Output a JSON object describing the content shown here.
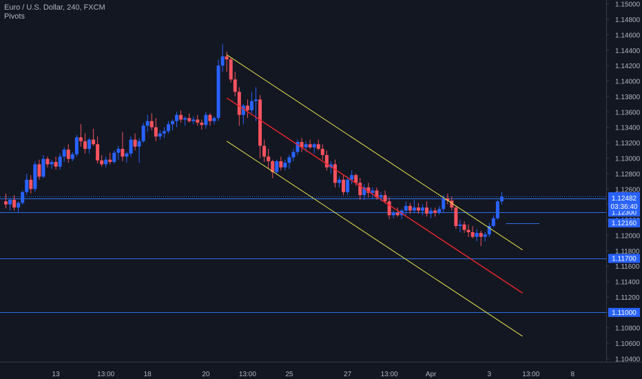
{
  "header": {
    "symbol": "Euro / U.S. Dollar, 240, FXCM",
    "indicator": "Pivots"
  },
  "colors": {
    "background": "#131722",
    "up": "#2962ff",
    "down": "#f7525f",
    "hline": "#2f6fe8",
    "channel": "#e8e84a",
    "regression": "#e5262b",
    "axis_text": "#b2b5be",
    "label_bg": "#2962ff",
    "label_text": "#ffffff",
    "axis_line": "#363a45"
  },
  "chart_data": {
    "type": "candlestick",
    "ylim": [
      1.1036,
      1.1505
    ],
    "y_ticks": [
      "1.15000",
      "1.14800",
      "1.14600",
      "1.14400",
      "1.14200",
      "1.14000",
      "1.13800",
      "1.13600",
      "1.13400",
      "1.13200",
      "1.13000",
      "1.12800",
      "1.12600",
      "1.12400",
      "1.12200",
      "1.12000",
      "1.11800",
      "1.11600",
      "1.11400",
      "1.11200",
      "1.11000",
      "1.10800",
      "1.10600",
      "1.10400"
    ],
    "x_ticks": [
      {
        "label": "13",
        "i": 12
      },
      {
        "label": "13:00",
        "i": 24
      },
      {
        "label": "18",
        "i": 34
      },
      {
        "label": "20",
        "i": 48
      },
      {
        "label": "13:00",
        "i": 58
      },
      {
        "label": "25",
        "i": 68
      },
      {
        "label": "27",
        "i": 82
      },
      {
        "label": "13:00",
        "i": 92
      },
      {
        "label": "Apr",
        "i": 102
      },
      {
        "label": "3",
        "i": 116
      },
      {
        "label": "13:00",
        "i": 126
      },
      {
        "label": "8",
        "i": 136
      }
    ],
    "horizontal_levels": [
      {
        "price": 1.125,
        "label": "1.12500",
        "style": "dotted"
      },
      {
        "price": 1.1248,
        "label": "1.12482",
        "style": "solid"
      },
      {
        "price": 1.123,
        "label": "1.12300",
        "style": "solid"
      },
      {
        "price": 1.1216,
        "label": "1.12160",
        "style": "short"
      },
      {
        "price": 1.117,
        "label": "1.11700",
        "style": "solid"
      },
      {
        "price": 1.11,
        "label": "1.11000",
        "style": "solid"
      }
    ],
    "current_price": {
      "label": "1.12482",
      "countdown": "03:36:40"
    },
    "channel": {
      "upper": [
        {
          "i": 53,
          "p": 1.1434
        },
        {
          "i": 124,
          "p": 1.1181
        }
      ],
      "lower": [
        {
          "i": 53,
          "p": 1.1322
        },
        {
          "i": 124,
          "p": 1.1069
        }
      ],
      "mid": [
        {
          "i": 53,
          "p": 1.1378
        },
        {
          "i": 124,
          "p": 1.1125
        }
      ]
    },
    "candles": [
      [
        1.1244,
        1.1254,
        1.1235,
        1.124
      ],
      [
        1.124,
        1.1248,
        1.1232,
        1.1246
      ],
      [
        1.1246,
        1.1252,
        1.1232,
        1.1236
      ],
      [
        1.1236,
        1.1244,
        1.1229,
        1.1242
      ],
      [
        1.1242,
        1.1258,
        1.124,
        1.1256
      ],
      [
        1.1256,
        1.128,
        1.1252,
        1.1272
      ],
      [
        1.1272,
        1.1278,
        1.1254,
        1.126
      ],
      [
        1.126,
        1.1296,
        1.1256,
        1.1292
      ],
      [
        1.1292,
        1.1298,
        1.1272,
        1.1276
      ],
      [
        1.1276,
        1.1304,
        1.1274,
        1.1299
      ],
      [
        1.1299,
        1.1302,
        1.1288,
        1.1292
      ],
      [
        1.1292,
        1.1298,
        1.1286,
        1.1295
      ],
      [
        1.1295,
        1.1302,
        1.1285,
        1.1289
      ],
      [
        1.1289,
        1.1306,
        1.1285,
        1.1302
      ],
      [
        1.1302,
        1.1314,
        1.1295,
        1.1311
      ],
      [
        1.1311,
        1.1318,
        1.1294,
        1.1299
      ],
      [
        1.1299,
        1.1308,
        1.1296,
        1.1305
      ],
      [
        1.1305,
        1.133,
        1.1302,
        1.1327
      ],
      [
        1.1327,
        1.1344,
        1.1315,
        1.1322
      ],
      [
        1.1322,
        1.1332,
        1.1306,
        1.1312
      ],
      [
        1.1312,
        1.1326,
        1.1306,
        1.1324
      ],
      [
        1.1324,
        1.1338,
        1.1316,
        1.1318
      ],
      [
        1.1318,
        1.1328,
        1.1293,
        1.1297
      ],
      [
        1.1297,
        1.1304,
        1.1289,
        1.1292
      ],
      [
        1.1292,
        1.1302,
        1.1288,
        1.1298
      ],
      [
        1.1298,
        1.1307,
        1.1292,
        1.1295
      ],
      [
        1.1295,
        1.131,
        1.1293,
        1.1307
      ],
      [
        1.1307,
        1.1316,
        1.1298,
        1.1312
      ],
      [
        1.1312,
        1.1334,
        1.1296,
        1.1302
      ],
      [
        1.1302,
        1.1308,
        1.1294,
        1.1306
      ],
      [
        1.1306,
        1.1328,
        1.1302,
        1.1324
      ],
      [
        1.1324,
        1.1332,
        1.131,
        1.1315
      ],
      [
        1.1315,
        1.1326,
        1.1294,
        1.1322
      ],
      [
        1.1322,
        1.1346,
        1.132,
        1.1342
      ],
      [
        1.1342,
        1.1356,
        1.1334,
        1.1348
      ],
      [
        1.1348,
        1.1358,
        1.1336,
        1.134
      ],
      [
        1.134,
        1.1352,
        1.1322,
        1.1328
      ],
      [
        1.1328,
        1.1336,
        1.1324,
        1.1332
      ],
      [
        1.1332,
        1.134,
        1.1326,
        1.1335
      ],
      [
        1.1335,
        1.1348,
        1.1332,
        1.1344
      ],
      [
        1.1344,
        1.135,
        1.1336,
        1.1348
      ],
      [
        1.1348,
        1.136,
        1.134,
        1.1356
      ],
      [
        1.1356,
        1.1362,
        1.1346,
        1.135
      ],
      [
        1.135,
        1.1354,
        1.1342,
        1.1352
      ],
      [
        1.1352,
        1.1358,
        1.1346,
        1.1348
      ],
      [
        1.1348,
        1.1354,
        1.1344,
        1.135
      ],
      [
        1.135,
        1.1356,
        1.1342,
        1.1346
      ],
      [
        1.1346,
        1.135,
        1.1337,
        1.1343
      ],
      [
        1.1343,
        1.136,
        1.1338,
        1.1356
      ],
      [
        1.1356,
        1.1358,
        1.1342,
        1.1348
      ],
      [
        1.1348,
        1.1354,
        1.1344,
        1.1352
      ],
      [
        1.1352,
        1.1428,
        1.1348,
        1.142
      ],
      [
        1.142,
        1.1448,
        1.1412,
        1.1432
      ],
      [
        1.1432,
        1.1438,
        1.1412,
        1.1428
      ],
      [
        1.1428,
        1.143,
        1.1398,
        1.1402
      ],
      [
        1.1402,
        1.1412,
        1.138,
        1.1386
      ],
      [
        1.1386,
        1.1392,
        1.1342,
        1.1356
      ],
      [
        1.1356,
        1.137,
        1.1344,
        1.1368
      ],
      [
        1.1368,
        1.1376,
        1.1352,
        1.1362
      ],
      [
        1.1362,
        1.1386,
        1.1358,
        1.1374
      ],
      [
        1.1374,
        1.1392,
        1.1348,
        1.1376
      ],
      [
        1.1376,
        1.1382,
        1.13,
        1.1316
      ],
      [
        1.1316,
        1.1324,
        1.1295,
        1.1302
      ],
      [
        1.1302,
        1.1312,
        1.1286,
        1.1296
      ],
      [
        1.1296,
        1.1298,
        1.1274,
        1.1282
      ],
      [
        1.1282,
        1.1298,
        1.128,
        1.1296
      ],
      [
        1.1296,
        1.1302,
        1.1284,
        1.1288
      ],
      [
        1.1288,
        1.1298,
        1.1284,
        1.1294
      ],
      [
        1.1294,
        1.1304,
        1.1286,
        1.1301
      ],
      [
        1.1301,
        1.1312,
        1.1296,
        1.1308
      ],
      [
        1.1308,
        1.1324,
        1.1304,
        1.1321
      ],
      [
        1.1321,
        1.1326,
        1.1308,
        1.1314
      ],
      [
        1.1314,
        1.1322,
        1.1308,
        1.1318
      ],
      [
        1.1318,
        1.1324,
        1.1312,
        1.1314
      ],
      [
        1.1314,
        1.132,
        1.1306,
        1.1318
      ],
      [
        1.1318,
        1.1324,
        1.131,
        1.1312
      ],
      [
        1.1312,
        1.1318,
        1.1298,
        1.1304
      ],
      [
        1.1304,
        1.131,
        1.1284,
        1.1288
      ],
      [
        1.1288,
        1.1296,
        1.128,
        1.1292
      ],
      [
        1.1292,
        1.1298,
        1.1262,
        1.1268
      ],
      [
        1.1268,
        1.1276,
        1.1262,
        1.1272
      ],
      [
        1.1272,
        1.1278,
        1.1252,
        1.1256
      ],
      [
        1.1256,
        1.1276,
        1.1252,
        1.1272
      ],
      [
        1.1272,
        1.1284,
        1.1266,
        1.1278
      ],
      [
        1.1278,
        1.128,
        1.1264,
        1.1268
      ],
      [
        1.1268,
        1.1274,
        1.1246,
        1.1252
      ],
      [
        1.1252,
        1.1266,
        1.1246,
        1.1262
      ],
      [
        1.1262,
        1.1268,
        1.1249,
        1.1255
      ],
      [
        1.1255,
        1.1262,
        1.1248,
        1.1258
      ],
      [
        1.1258,
        1.1262,
        1.1246,
        1.1249
      ],
      [
        1.1249,
        1.1256,
        1.1244,
        1.1252
      ],
      [
        1.1252,
        1.1258,
        1.1241,
        1.1244
      ],
      [
        1.1244,
        1.1249,
        1.1221,
        1.1226
      ],
      [
        1.1226,
        1.1232,
        1.1222,
        1.1229
      ],
      [
        1.1229,
        1.1236,
        1.1224,
        1.1226
      ],
      [
        1.1226,
        1.1234,
        1.1221,
        1.1232
      ],
      [
        1.1232,
        1.1244,
        1.1226,
        1.1238
      ],
      [
        1.1238,
        1.1242,
        1.1228,
        1.1232
      ],
      [
        1.1232,
        1.1246,
        1.123,
        1.1236
      ],
      [
        1.1236,
        1.1242,
        1.1228,
        1.1232
      ],
      [
        1.1232,
        1.124,
        1.1226,
        1.1236
      ],
      [
        1.1236,
        1.1244,
        1.1224,
        1.1228
      ],
      [
        1.1228,
        1.1236,
        1.1222,
        1.1232
      ],
      [
        1.1232,
        1.1236,
        1.1224,
        1.1229
      ],
      [
        1.1229,
        1.1238,
        1.1227,
        1.1234
      ],
      [
        1.1234,
        1.1252,
        1.123,
        1.1248
      ],
      [
        1.1248,
        1.1254,
        1.124,
        1.1245
      ],
      [
        1.1245,
        1.125,
        1.1232,
        1.1236
      ],
      [
        1.1236,
        1.1238,
        1.1208,
        1.1212
      ],
      [
        1.1212,
        1.122,
        1.1204,
        1.1214
      ],
      [
        1.1214,
        1.1218,
        1.1203,
        1.1207
      ],
      [
        1.1207,
        1.1214,
        1.1198,
        1.1204
      ],
      [
        1.1204,
        1.1212,
        1.1196,
        1.1198
      ],
      [
        1.1198,
        1.1208,
        1.1192,
        1.1203
      ],
      [
        1.1203,
        1.1206,
        1.1186,
        1.1198
      ],
      [
        1.1198,
        1.1204,
        1.1192,
        1.1201
      ],
      [
        1.1201,
        1.1216,
        1.1198,
        1.1212
      ],
      [
        1.1212,
        1.1226,
        1.121,
        1.1222
      ],
      [
        1.1222,
        1.1246,
        1.122,
        1.1244
      ],
      [
        1.1244,
        1.1256,
        1.124,
        1.125
      ]
    ]
  }
}
